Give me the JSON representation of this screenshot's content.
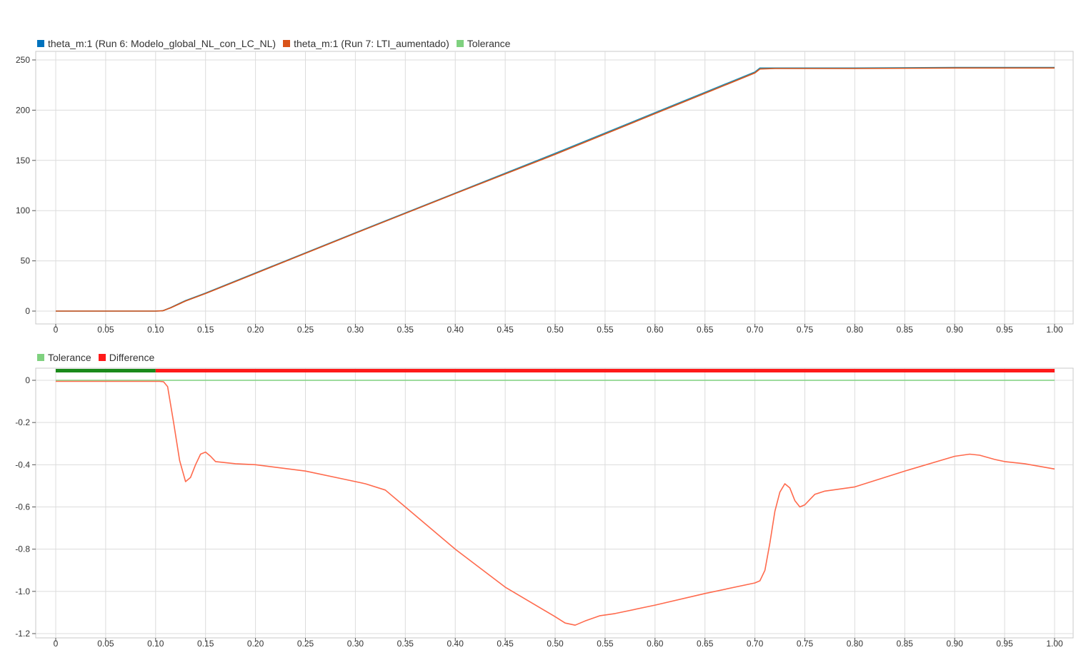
{
  "legends": {
    "top": [
      {
        "label": "theta_m:1 (Run 6: Modelo_global_NL_con_LC_NL)",
        "color": "#0072bd"
      },
      {
        "label": "theta_m:1 (Run 7: LTI_aumentado)",
        "color": "#d95319"
      },
      {
        "label": "Tolerance",
        "color": "#7fd17f"
      }
    ],
    "bottom": [
      {
        "label": "Tolerance",
        "color": "#7fd17f"
      },
      {
        "label": "Difference",
        "color": "#ff1a1a"
      }
    ]
  },
  "chart_data": [
    {
      "type": "line",
      "xlim": [
        0,
        1.0
      ],
      "ylim": [
        -10,
        252
      ],
      "x_ticks": [
        "0",
        "0.05",
        "0.10",
        "0.15",
        "0.20",
        "0.25",
        "0.30",
        "0.35",
        "0.40",
        "0.45",
        "0.50",
        "0.55",
        "0.60",
        "0.65",
        "0.70",
        "0.75",
        "0.80",
        "0.85",
        "0.90",
        "0.95",
        "1.00"
      ],
      "y_ticks": [
        "0",
        "50",
        "100",
        "150",
        "200",
        "250"
      ],
      "grid": true,
      "series": [
        {
          "name": "theta_m:1 (Run 6: Modelo_global_NL_con_LC_NL)",
          "color": "#1f8fb4",
          "x": [
            0,
            0.1,
            0.107,
            0.115,
            0.13,
            0.15,
            0.2,
            0.3,
            0.4,
            0.5,
            0.6,
            0.7,
            0.705,
            0.72,
            0.8,
            0.9,
            1.0
          ],
          "y": [
            0,
            0,
            0.3,
            3.5,
            10.5,
            18,
            38,
            78,
            117.5,
            157,
            197.5,
            238,
            242,
            242,
            242,
            242.5,
            242.5
          ]
        },
        {
          "name": "theta_m:1 (Run 7: LTI_aumentado)",
          "color": "#d95319",
          "x": [
            0,
            0.1,
            0.107,
            0.115,
            0.13,
            0.15,
            0.2,
            0.3,
            0.4,
            0.5,
            0.6,
            0.7,
            0.705,
            0.72,
            0.8,
            0.9,
            1.0
          ],
          "y": [
            0,
            0,
            0.3,
            3.2,
            10,
            17.5,
            37.5,
            77.5,
            117,
            156,
            196.5,
            237,
            241,
            241.5,
            241.5,
            242,
            242
          ]
        }
      ]
    },
    {
      "type": "line",
      "xlim": [
        0,
        1.0
      ],
      "ylim": [
        -1.2,
        0.05
      ],
      "x_ticks": [
        "0",
        "0.05",
        "0.10",
        "0.15",
        "0.20",
        "0.25",
        "0.30",
        "0.35",
        "0.40",
        "0.45",
        "0.50",
        "0.55",
        "0.60",
        "0.65",
        "0.70",
        "0.75",
        "0.80",
        "0.85",
        "0.90",
        "0.95",
        "1.00"
      ],
      "y_ticks": [
        "0",
        "-0.2",
        "-0.4",
        "-0.6",
        "-0.8",
        "-1.0",
        "-1.2"
      ],
      "grid": true,
      "tolerance_line": 0,
      "tolerance_color": "#7fd17f",
      "status_bar": [
        {
          "x0": 0,
          "x1": 0.1,
          "color": "#1a8a1a"
        },
        {
          "x0": 0.1,
          "x1": 1.0,
          "color": "#ff1a1a"
        }
      ],
      "series": [
        {
          "name": "Difference",
          "color": "#ff6a4d",
          "x": [
            0,
            0.1,
            0.104,
            0.108,
            0.112,
            0.118,
            0.124,
            0.13,
            0.135,
            0.14,
            0.145,
            0.15,
            0.155,
            0.16,
            0.17,
            0.18,
            0.2,
            0.25,
            0.29,
            0.31,
            0.33,
            0.35,
            0.4,
            0.45,
            0.5,
            0.51,
            0.52,
            0.53,
            0.545,
            0.56,
            0.6,
            0.65,
            0.7,
            0.705,
            0.71,
            0.715,
            0.72,
            0.725,
            0.73,
            0.735,
            0.74,
            0.745,
            0.75,
            0.755,
            0.76,
            0.77,
            0.8,
            0.85,
            0.9,
            0.915,
            0.925,
            0.94,
            0.95,
            0.97,
            1.0
          ],
          "y": [
            -0.005,
            -0.005,
            -0.005,
            -0.007,
            -0.03,
            -0.2,
            -0.38,
            -0.48,
            -0.46,
            -0.4,
            -0.35,
            -0.34,
            -0.36,
            -0.385,
            -0.39,
            -0.395,
            -0.4,
            -0.43,
            -0.47,
            -0.49,
            -0.52,
            -0.6,
            -0.8,
            -0.98,
            -1.12,
            -1.15,
            -1.16,
            -1.14,
            -1.115,
            -1.105,
            -1.065,
            -1.01,
            -0.96,
            -0.95,
            -0.9,
            -0.77,
            -0.62,
            -0.53,
            -0.49,
            -0.51,
            -0.57,
            -0.6,
            -0.59,
            -0.565,
            -0.54,
            -0.525,
            -0.505,
            -0.43,
            -0.36,
            -0.35,
            -0.355,
            -0.375,
            -0.385,
            -0.395,
            -0.42
          ]
        }
      ]
    }
  ]
}
